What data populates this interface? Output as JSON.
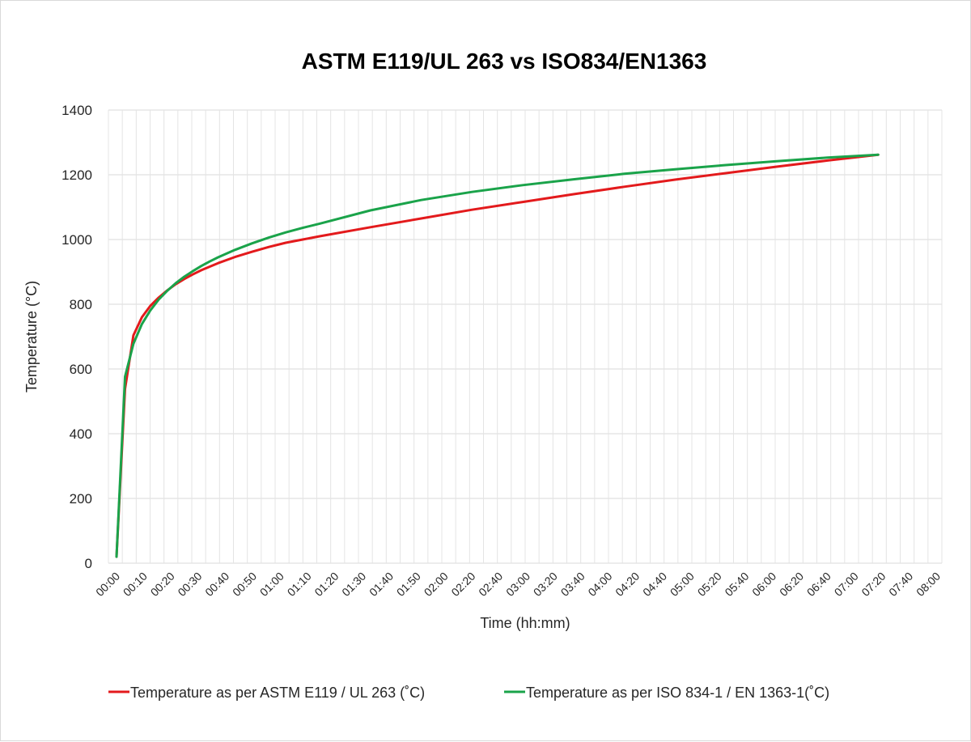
{
  "chart_data": {
    "type": "line",
    "title": "ASTM E119/UL 263 vs ISO834/EN1363",
    "xlabel": "Time (hh:mm)",
    "ylabel": "Temperature (°C)",
    "ylim": [
      0,
      1400
    ],
    "yticks": [
      0,
      200,
      400,
      600,
      800,
      1000,
      1200,
      1400
    ],
    "xlim_minutes": [
      0,
      480
    ],
    "xticks": [
      "00:00",
      "00:10",
      "00:20",
      "00:30",
      "00:40",
      "00:50",
      "01:00",
      "01:10",
      "01:20",
      "01:30",
      "01:40",
      "01:50",
      "02:00",
      "02:20",
      "02:40",
      "03:00",
      "03:20",
      "03:40",
      "04:00",
      "04:20",
      "04:40",
      "05:00",
      "05:20",
      "05:40",
      "06:00",
      "06:20",
      "06:40",
      "07:00",
      "07:20",
      "07:40",
      "08:00"
    ],
    "grid": true,
    "legend_position": "bottom",
    "series": [
      {
        "name": "Temperature as per ASTM E119 / UL 263 (˚C)",
        "color": "#e31a1c",
        "points": [
          [
            "00:00",
            20
          ],
          [
            "00:05",
            538
          ],
          [
            "00:10",
            704
          ],
          [
            "00:15",
            760
          ],
          [
            "00:20",
            795
          ],
          [
            "00:25",
            821
          ],
          [
            "00:30",
            843
          ],
          [
            "00:35",
            862
          ],
          [
            "00:40",
            878
          ],
          [
            "00:45",
            892
          ],
          [
            "00:50",
            905
          ],
          [
            "00:55",
            916
          ],
          [
            "01:00",
            927
          ],
          [
            "01:10",
            946
          ],
          [
            "01:20",
            962
          ],
          [
            "01:30",
            977
          ],
          [
            "01:40",
            990
          ],
          [
            "01:50",
            1000
          ],
          [
            "02:00",
            1010
          ],
          [
            "02:30",
            1038
          ],
          [
            "03:00",
            1065
          ],
          [
            "03:30",
            1092
          ],
          [
            "04:00",
            1116
          ],
          [
            "04:30",
            1140
          ],
          [
            "05:00",
            1163
          ],
          [
            "05:30",
            1185
          ],
          [
            "06:00",
            1205
          ],
          [
            "06:30",
            1225
          ],
          [
            "07:00",
            1244
          ],
          [
            "07:30",
            1262
          ]
        ]
      },
      {
        "name": "Temperature as per ISO 834-1 / EN 1363-1(˚C)",
        "color": "#1aa34a",
        "points": [
          [
            "00:00",
            20
          ],
          [
            "00:05",
            576
          ],
          [
            "00:10",
            678
          ],
          [
            "00:15",
            739
          ],
          [
            "00:20",
            781
          ],
          [
            "00:25",
            815
          ],
          [
            "00:30",
            842
          ],
          [
            "00:35",
            865
          ],
          [
            "00:40",
            885
          ],
          [
            "00:45",
            902
          ],
          [
            "00:50",
            918
          ],
          [
            "00:55",
            932
          ],
          [
            "01:00",
            945
          ],
          [
            "01:10",
            968
          ],
          [
            "01:20",
            988
          ],
          [
            "01:30",
            1006
          ],
          [
            "01:40",
            1022
          ],
          [
            "01:50",
            1036
          ],
          [
            "02:00",
            1049
          ],
          [
            "02:30",
            1090
          ],
          [
            "03:00",
            1122
          ],
          [
            "03:30",
            1147
          ],
          [
            "04:00",
            1168
          ],
          [
            "04:30",
            1186
          ],
          [
            "05:00",
            1203
          ],
          [
            "05:30",
            1217
          ],
          [
            "06:00",
            1230
          ],
          [
            "06:30",
            1242
          ],
          [
            "07:00",
            1253
          ],
          [
            "07:30",
            1262
          ]
        ]
      }
    ]
  }
}
